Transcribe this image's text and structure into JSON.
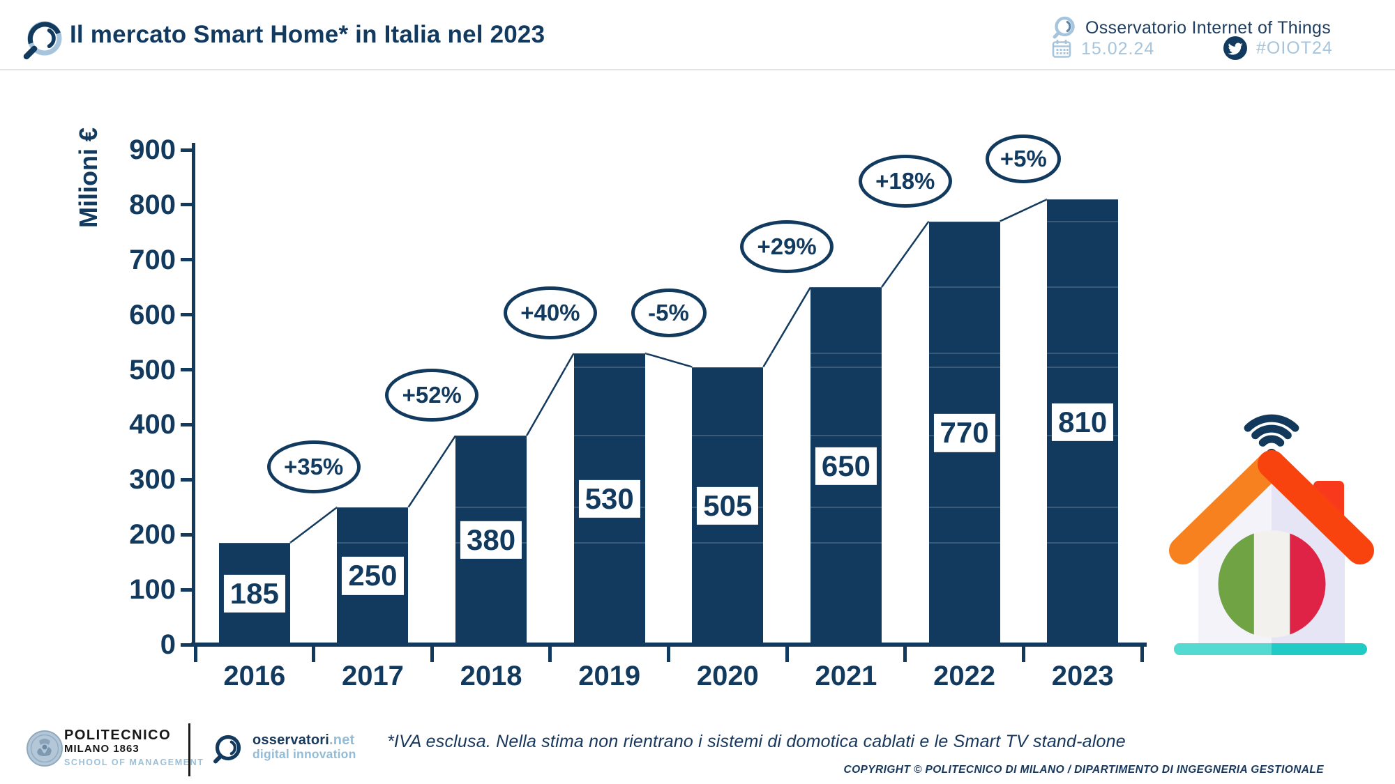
{
  "header": {
    "title": "Il mercato Smart Home* in Italia nel 2023",
    "org_name": "Osservatorio Internet of Things",
    "date": "15.02.24",
    "hashtag": "#OIOT24"
  },
  "chart_data": {
    "type": "bar",
    "title": "Il mercato Smart Home* in Italia nel 2023",
    "categories": [
      "2016",
      "2017",
      "2018",
      "2019",
      "2020",
      "2021",
      "2022",
      "2023"
    ],
    "values": [
      185,
      250,
      380,
      530,
      505,
      650,
      770,
      810
    ],
    "growth_labels": [
      "+35%",
      "+52%",
      "+40%",
      "-5%",
      "+29%",
      "+18%",
      "+5%"
    ],
    "xlabel": "",
    "ylabel": "Milioni €",
    "ylim": [
      0,
      900
    ],
    "ytick_step": 100,
    "yticks": [
      0,
      100,
      200,
      300,
      400,
      500,
      600,
      700,
      800,
      900
    ],
    "grid": "faint horizontal lines at bar-top levels, visible over bars only",
    "legend": "none",
    "trend_line": "thin line connecting consecutive bar top corners",
    "bar_color": "#123A5E",
    "value_label_style": "white box inside bar, navy text"
  },
  "footer": {
    "politecnico": {
      "line1": "POLITECNICO",
      "line2": "MILANO 1863",
      "line3": "SCHOOL OF MANAGEMENT"
    },
    "osservatori": {
      "name": "osservatori",
      "tld": ".net",
      "tagline": "digital innovation"
    },
    "footnote": "*IVA esclusa. Nella stima non rientrano i sistemi di domotica cablati e le Smart TV stand-alone",
    "copyright": "COPYRIGHT © POLITECNICO DI MILANO / DIPARTIMENTO DI INGEGNERIA GESTIONALE"
  },
  "colors": {
    "navy": "#123A5E",
    "light_blue": "#A6C5DC",
    "header_rule": "#E3E3E3",
    "wifi": "#12395C",
    "roof_left": "#F8811F",
    "roof_right": "#F9430F",
    "chimney": "#F8391C",
    "body_left": "#F3F3F9",
    "body_right": "#E5E5F6",
    "flag_green": "#6FA344",
    "flag_white": "#F3F1EE",
    "flag_red": "#DF2346",
    "base_left": "#55DAD1",
    "base_right": "#21CBC5",
    "seal_fill": "#B3C7D8",
    "seal_ring": "#8FA9BE"
  }
}
